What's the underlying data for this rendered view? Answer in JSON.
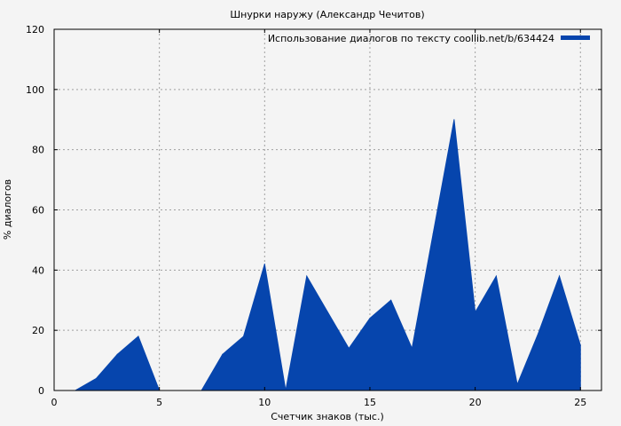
{
  "chart_data": {
    "type": "area",
    "title": "Шнурки наружу (Александр Чечитов)",
    "xlabel": "Счетчик знаков (тыс.)",
    "ylabel": "% диалогов",
    "xlim": [
      0,
      26
    ],
    "ylim": [
      0,
      120
    ],
    "xticks": [
      0,
      5,
      10,
      15,
      20,
      25
    ],
    "yticks": [
      0,
      20,
      40,
      60,
      80,
      100,
      120
    ],
    "grid": true,
    "legend_position": "top-right",
    "series": [
      {
        "name": "Использование диалогов по тексту coollib.net/b/634424",
        "color": "#0645ad",
        "x": [
          1,
          2,
          3,
          4,
          5,
          6,
          7,
          8,
          9,
          10,
          11,
          12,
          13,
          14,
          15,
          16,
          17,
          18,
          19,
          20,
          21,
          22,
          23,
          24,
          25
        ],
        "y": [
          0,
          4,
          12,
          18,
          0,
          0,
          0,
          12,
          18,
          42,
          0,
          38,
          26,
          14,
          24,
          30,
          14,
          52,
          90,
          26,
          38,
          2,
          19,
          38,
          15
        ]
      }
    ]
  }
}
